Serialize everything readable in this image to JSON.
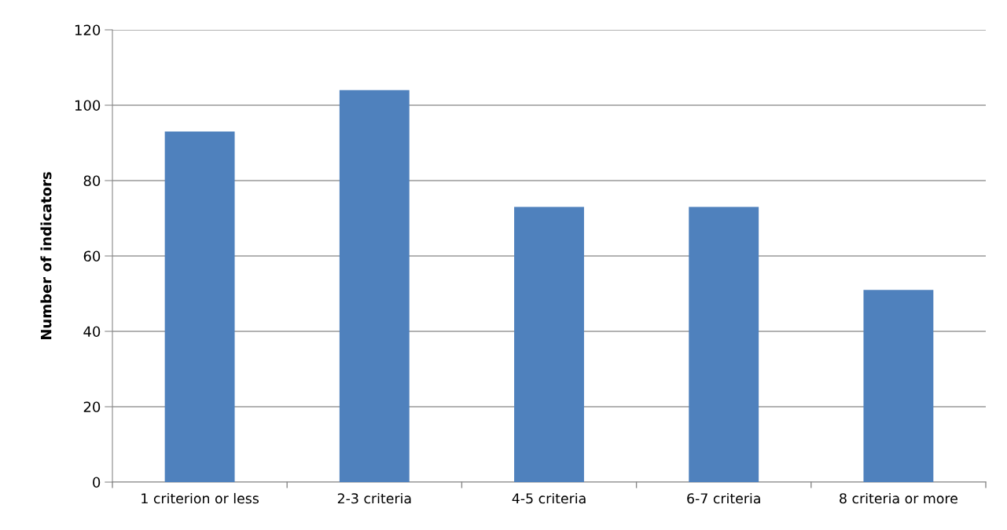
{
  "chart_data": {
    "type": "bar",
    "ylabel": "Number of indicators",
    "categories": [
      "1 criterion or less",
      "2-3 criteria",
      "4-5 criteria",
      "6-7 criteria",
      "8 criteria or more"
    ],
    "values": [
      93,
      104,
      73,
      73,
      51
    ],
    "color": "#4f81bd",
    "ylim": [
      0,
      120
    ],
    "yticks": [
      0,
      20,
      40,
      60,
      80,
      100,
      120
    ],
    "grid": "y",
    "legend": false
  }
}
